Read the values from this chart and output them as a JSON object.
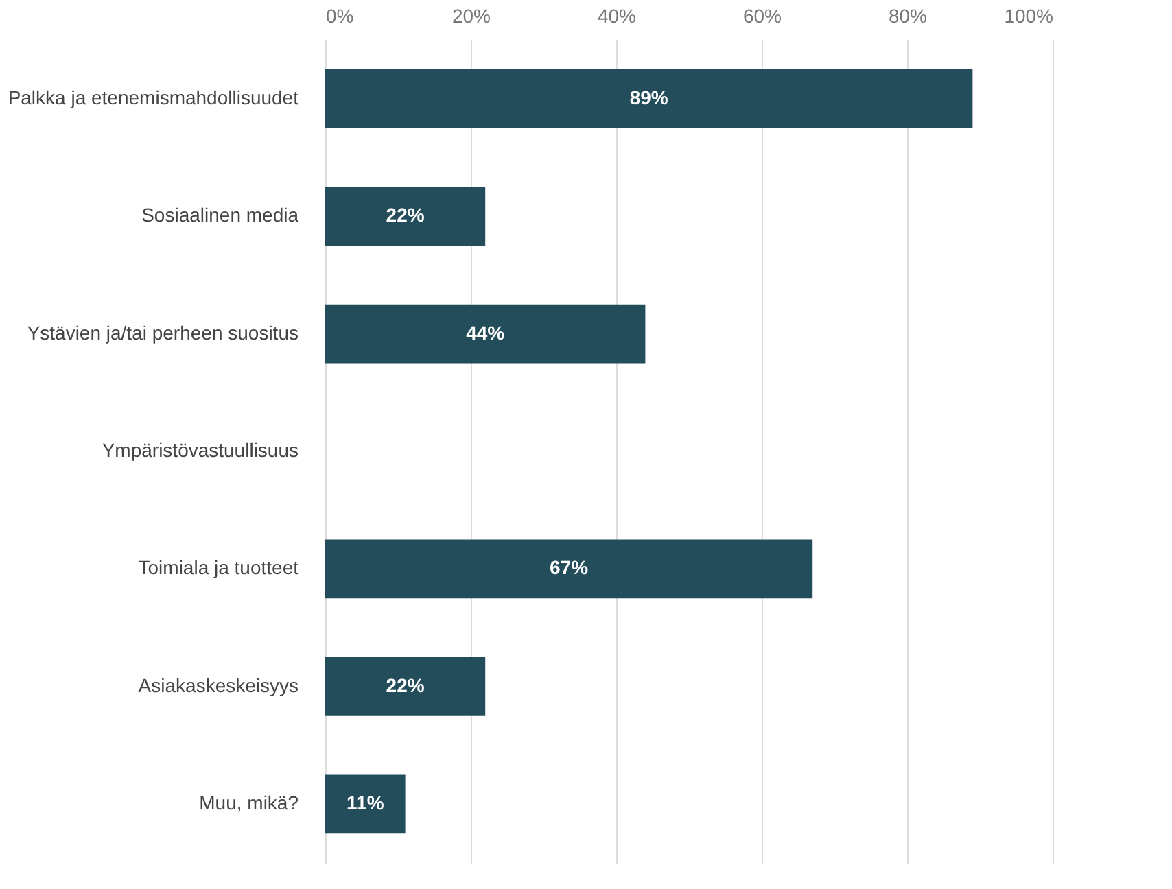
{
  "chart_data": {
    "type": "bar",
    "orientation": "horizontal",
    "categories": [
      "Palkka ja etenemismahdollisuudet",
      "Sosiaalinen media",
      "Ystävien ja/tai perheen suositus",
      "Ympäristövastuullisuus",
      "Toimiala ja tuotteet",
      "Asiakaskeskeisyys",
      "Muu, mikä?"
    ],
    "values": [
      89,
      22,
      44,
      0,
      67,
      22,
      11
    ],
    "value_labels": [
      "89%",
      "22%",
      "44%",
      null,
      "67%",
      "22%",
      "11%"
    ],
    "color": "#244d5b",
    "xlim": [
      0,
      100
    ],
    "xticks": [
      {
        "value": 0,
        "label": "0%"
      },
      {
        "value": 20,
        "label": "20%"
      },
      {
        "value": 40,
        "label": "40%"
      },
      {
        "value": 60,
        "label": "60%"
      },
      {
        "value": 80,
        "label": "80%"
      },
      {
        "value": 100,
        "label": "100%"
      }
    ],
    "grid": "x"
  }
}
